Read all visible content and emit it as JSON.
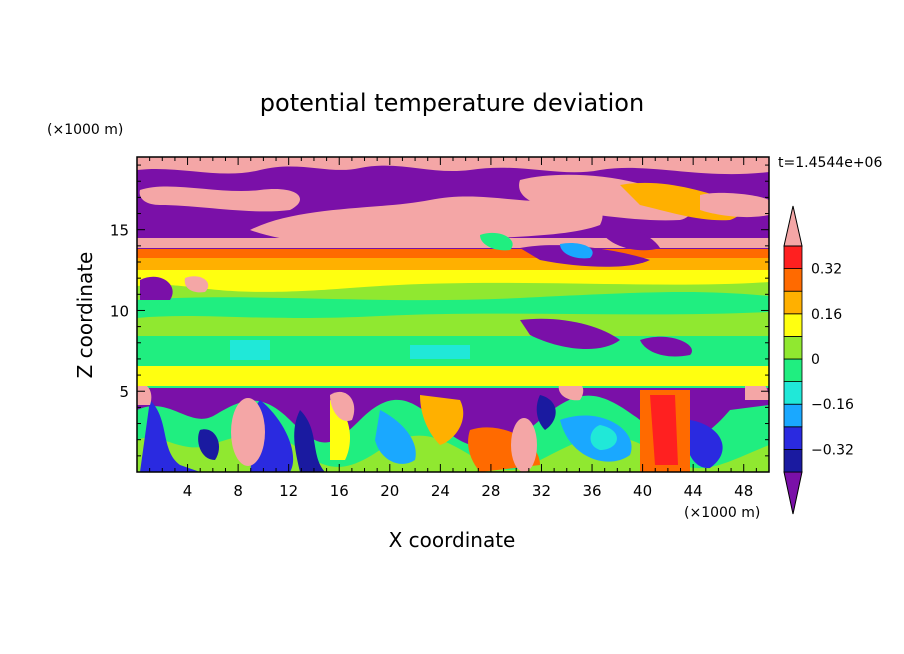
{
  "chart_data": {
    "type": "heatmap",
    "title": "potential temperature deviation",
    "xlabel": "X coordinate",
    "ylabel": "Z coordinate",
    "x_unit": "(×1000 m)",
    "y_unit": "(×1000 m)",
    "time_label": "t=1.4544e+06",
    "xlim": [
      0,
      50
    ],
    "ylim": [
      0,
      19.5
    ],
    "x_ticks": [
      "4",
      "8",
      "12",
      "16",
      "20",
      "24",
      "28",
      "32",
      "36",
      "40",
      "44",
      "48"
    ],
    "y_ticks": [
      "5",
      "10",
      "15"
    ],
    "x_tick_values": [
      4,
      8,
      12,
      16,
      20,
      24,
      28,
      32,
      36,
      40,
      44,
      48
    ],
    "y_tick_values": [
      5,
      10,
      15
    ],
    "colorbar": {
      "tick_labels": [
        "0.32",
        "0.16",
        "0",
        "−0.16",
        "−0.32"
      ],
      "tick_values": [
        0.32,
        0.16,
        0,
        -0.16,
        -0.32
      ],
      "levels": [
        -0.4,
        -0.32,
        -0.24,
        -0.16,
        -0.08,
        0,
        0.08,
        0.16,
        0.24,
        0.32,
        0.4
      ],
      "colors": [
        "#7a10a8",
        "#1a1aa0",
        "#2a2ae0",
        "#1aa8ff",
        "#20e8d8",
        "#20ee80",
        "#90e830",
        "#ffff10",
        "#ffb000",
        "#ff6a00",
        "#ff2020",
        "#f4a6a6"
      ],
      "extend": "both"
    },
    "bands": [
      {
        "z": [
          0,
          5.5
        ],
        "pattern": "turbulent",
        "note": "mixed purple/blue/green/red eddies with pink blobs"
      },
      {
        "z": [
          5.5,
          6.8
        ],
        "value": 0.16
      },
      {
        "z": [
          6.8,
          10.5
        ],
        "value": 0.02
      },
      {
        "z": [
          10.5,
          12.5
        ],
        "value": 0.08
      },
      {
        "z": [
          12.5,
          14.5
        ],
        "value": 0.24
      },
      {
        "z": [
          14.5,
          19.5
        ],
        "pattern": "purple and pink clouds",
        "value_range": [
          -0.4,
          0.4
        ]
      }
    ]
  }
}
